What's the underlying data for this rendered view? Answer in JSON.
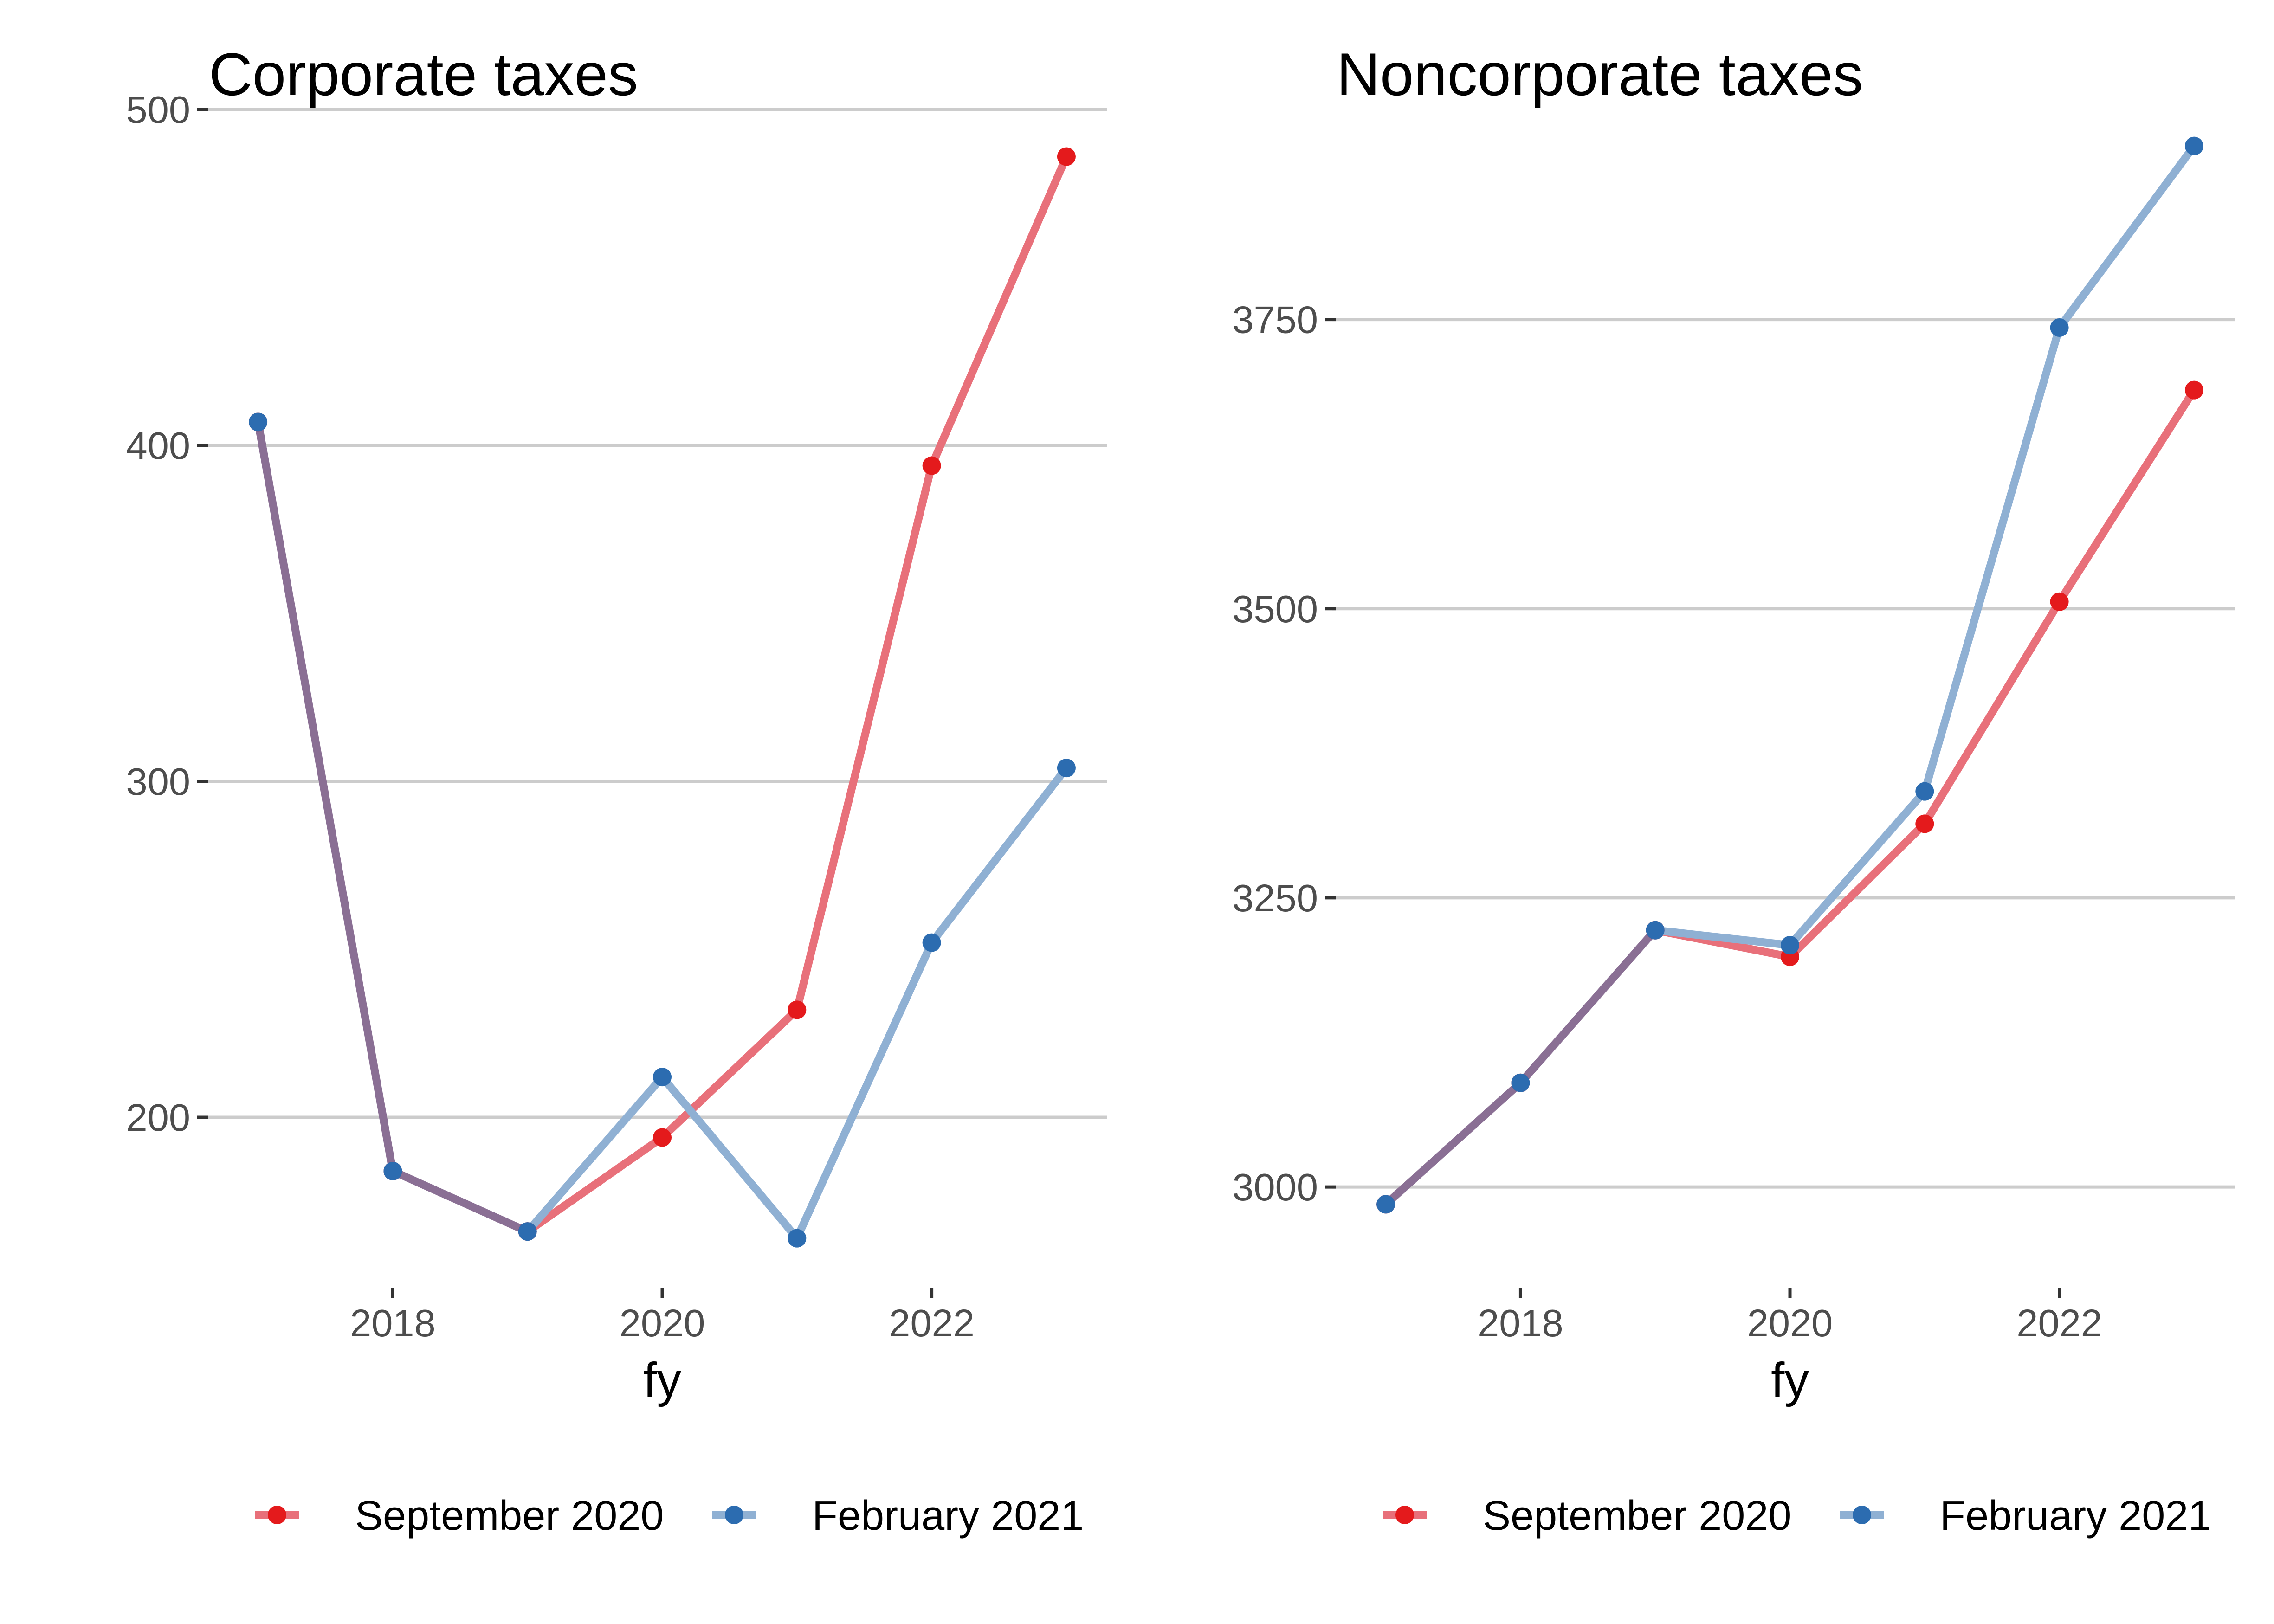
{
  "colors": {
    "september_2020": "#e41a1c",
    "september_2020_line": "#e8707a",
    "february_2021": "#2c6cb0",
    "february_2021_line": "#8fb0d3",
    "overlap_line": "#8a6f94",
    "gridline": "#cccccc"
  },
  "chart_data": [
    {
      "type": "line",
      "title": "Corporate taxes",
      "xlabel": "fy",
      "ylabel": "",
      "x": [
        2017,
        2018,
        2019,
        2020,
        2021,
        2022,
        2023
      ],
      "xticks": [
        2018,
        2020,
        2022
      ],
      "xtick_labels": [
        "2018",
        "2020",
        "2022"
      ],
      "xlim": [
        2016.6,
        2023.3
      ],
      "yticks": [
        200,
        300,
        400,
        500
      ],
      "ytick_labels": [
        "200",
        "300",
        "400",
        "500"
      ],
      "ylim": [
        150,
        505
      ],
      "grid": "horizontal major",
      "legend_position": "bottom",
      "series": [
        {
          "name": "September 2020",
          "values": [
            407,
            184,
            166,
            194,
            232,
            394,
            486
          ]
        },
        {
          "name": "February 2021",
          "values": [
            407,
            184,
            166,
            212,
            164,
            252,
            304
          ]
        }
      ]
    },
    {
      "type": "line",
      "title": "Noncorporate taxes",
      "xlabel": "fy",
      "ylabel": "",
      "x": [
        2017,
        2018,
        2019,
        2020,
        2021,
        2022,
        2023
      ],
      "xticks": [
        2018,
        2020,
        2022
      ],
      "xtick_labels": [
        "2018",
        "2020",
        "2022"
      ],
      "xlim": [
        2016.6,
        2023.3
      ],
      "yticks": [
        3000,
        3250,
        3500,
        3750
      ],
      "ytick_labels": [
        "3000",
        "3250",
        "3500",
        "3750"
      ],
      "ylim": [
        2915,
        3946
      ],
      "grid": "horizontal major",
      "legend_position": "bottom",
      "series": [
        {
          "name": "September 2020",
          "values": [
            2985,
            3090,
            3222,
            3199,
            3314,
            3506,
            3689
          ]
        },
        {
          "name": "February 2021",
          "values": [
            2985,
            3090,
            3222,
            3209,
            3342,
            3743,
            3900
          ]
        }
      ]
    }
  ]
}
